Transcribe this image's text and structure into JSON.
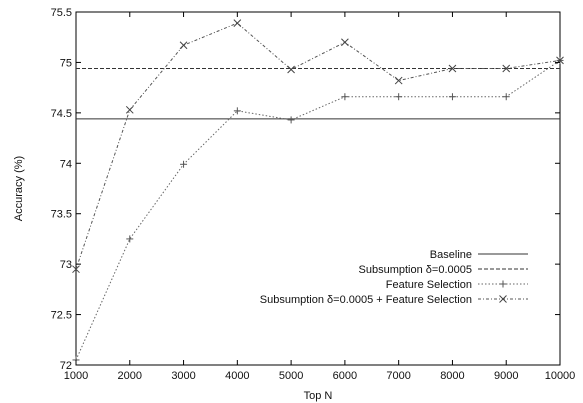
{
  "chart_data": {
    "type": "line",
    "title": "",
    "xlabel": "Top N",
    "ylabel": "Accuracy (%)",
    "xlim": [
      1000,
      10000
    ],
    "ylim": [
      72,
      75.5
    ],
    "xticks": [
      1000,
      2000,
      3000,
      4000,
      5000,
      6000,
      7000,
      8000,
      9000,
      10000
    ],
    "yticks": [
      72,
      72.5,
      73,
      73.5,
      74,
      74.5,
      75,
      75.5
    ],
    "legend_position": "lower-right",
    "grid": false,
    "series": [
      {
        "name": "Baseline",
        "style": "solid",
        "marker": "none",
        "x": [
          1000,
          10000
        ],
        "y": [
          74.44,
          74.44
        ]
      },
      {
        "name": "Subsumption δ=0.0005",
        "style": "dashed",
        "marker": "none",
        "x": [
          1000,
          10000
        ],
        "y": [
          74.94,
          74.94
        ]
      },
      {
        "name": "Feature Selection",
        "style": "dotted",
        "marker": "plus",
        "x": [
          1000,
          2000,
          3000,
          4000,
          5000,
          6000,
          7000,
          8000,
          9000,
          10000
        ],
        "y": [
          72.05,
          73.25,
          73.99,
          74.52,
          74.43,
          74.66,
          74.66,
          74.66,
          74.66,
          75.02
        ]
      },
      {
        "name": "Subsumption δ=0.0005 + Feature Selection",
        "style": "dash-dot",
        "marker": "x",
        "x": [
          1000,
          2000,
          3000,
          4000,
          5000,
          6000,
          7000,
          8000,
          9000,
          10000
        ],
        "y": [
          72.95,
          74.53,
          75.17,
          75.39,
          74.93,
          75.2,
          74.82,
          74.94,
          74.94,
          75.02
        ]
      }
    ]
  }
}
